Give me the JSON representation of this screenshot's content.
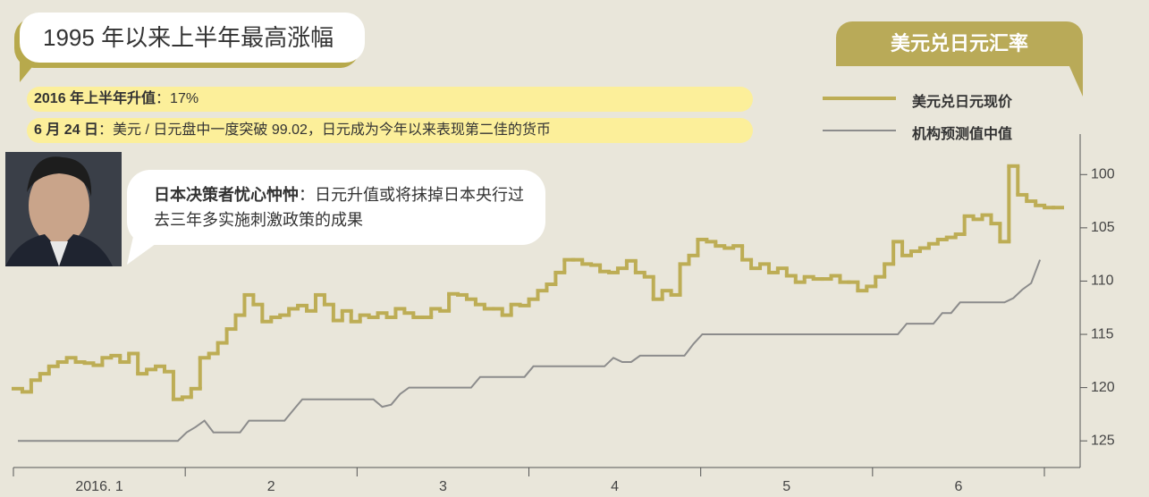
{
  "header": {
    "title": "1995 年以来上半年最高涨幅",
    "badge": "美元兑日元汇率"
  },
  "notes": [
    {
      "bold": "2016 年上半年升值",
      "text": "：17%"
    },
    {
      "bold": "6 月 24 日",
      "text": "：美元 / 日元盘中一度突破 99.02，日元成为今年以来表现第二佳的货币"
    }
  ],
  "quote": {
    "bold": "日本决策者忧心忡忡",
    "text": "：日元升值或将抹掉日本央行过去三年多实施刺激政策的成果"
  },
  "chart_data": {
    "type": "line",
    "x_labels": [
      "2016. 1",
      "2",
      "3",
      "4",
      "5",
      "6"
    ],
    "ylim": [
      127.5,
      96.2
    ],
    "yticks": [
      100,
      105,
      110,
      115,
      120,
      125
    ],
    "series": [
      {
        "name": "美元兑日元现价",
        "color": "#bdad55",
        "step": true,
        "values": [
          120.1,
          120.4,
          119.3,
          118.7,
          118.0,
          117.6,
          117.2,
          117.6,
          117.7,
          117.9,
          117.2,
          117.0,
          117.6,
          116.8,
          118.7,
          118.3,
          118.0,
          118.5,
          121.1,
          120.9,
          120.1,
          117.2,
          116.8,
          115.8,
          114.5,
          113.2,
          111.3,
          112.2,
          113.8,
          113.4,
          113.2,
          112.6,
          112.3,
          112.8,
          111.3,
          112.2,
          113.7,
          112.8,
          113.8,
          113.2,
          113.4,
          113.0,
          113.4,
          112.6,
          113.0,
          113.4,
          113.4,
          112.6,
          112.8,
          111.2,
          111.3,
          111.7,
          112.2,
          112.6,
          112.6,
          113.2,
          112.2,
          112.3,
          111.7,
          110.9,
          110.3,
          109.2,
          108.0,
          108.0,
          108.4,
          108.5,
          109.1,
          109.2,
          108.8,
          108.1,
          109.2,
          109.6,
          111.7,
          110.9,
          111.3,
          108.4,
          107.6,
          106.1,
          106.3,
          106.7,
          106.9,
          106.7,
          108.0,
          108.8,
          108.4,
          109.2,
          108.8,
          109.5,
          110.1,
          109.6,
          109.8,
          109.8,
          109.5,
          110.1,
          110.1,
          110.9,
          110.5,
          109.6,
          108.4,
          106.3,
          107.6,
          107.2,
          106.9,
          106.5,
          106.1,
          105.9,
          105.6,
          103.9,
          104.2,
          103.8,
          104.6,
          106.3,
          99.2,
          101.9,
          102.5,
          102.9,
          103.1,
          103.1
        ]
      },
      {
        "name": "机构预测值中值",
        "color": "#8c8c8c",
        "step": false,
        "values": [
          125,
          125,
          125,
          125,
          125,
          125,
          125,
          125,
          125,
          125,
          125,
          125,
          125,
          125,
          125,
          125,
          125,
          125,
          125,
          124.2,
          123.7,
          123.1,
          124.2,
          124.2,
          124.2,
          124.2,
          123.1,
          123.1,
          123.1,
          123.1,
          123.1,
          122.1,
          121.1,
          121.1,
          121.1,
          121.1,
          121.1,
          121.1,
          121.1,
          121.1,
          121.1,
          121.8,
          121.6,
          120.6,
          120.0,
          120,
          120,
          120,
          120,
          120,
          120,
          120,
          119.0,
          119,
          119,
          119,
          119,
          119,
          118.0,
          118,
          118,
          118,
          118,
          118,
          118,
          118,
          118,
          117.2,
          117.6,
          117.6,
          117.0,
          117,
          117,
          117,
          117,
          117,
          115.9,
          115.0,
          115,
          115,
          115,
          115,
          115,
          115,
          115,
          115,
          115,
          115,
          115,
          115,
          115,
          115,
          115,
          115,
          115,
          115,
          115,
          115,
          115,
          115,
          114.0,
          114,
          114,
          114,
          113.0,
          113.0,
          112.0,
          112,
          112,
          112,
          112,
          112,
          111.6,
          110.8,
          110.2,
          108.0,
          null,
          null
        ]
      }
    ]
  }
}
